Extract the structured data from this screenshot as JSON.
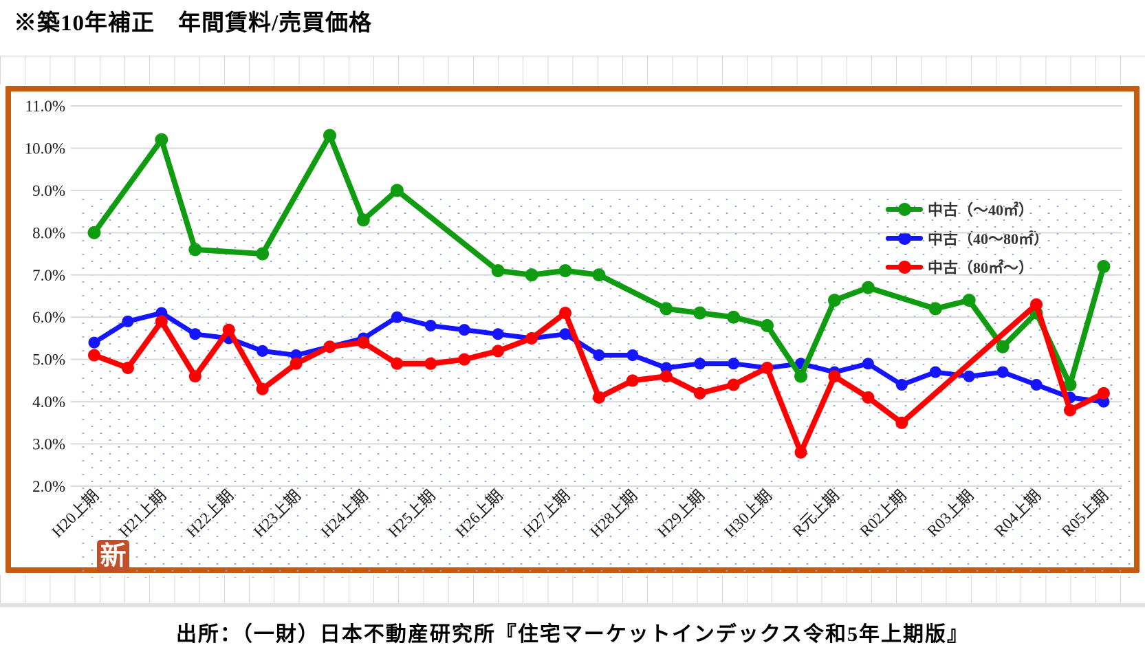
{
  "title": "※築10年補正　年間賃料/売買価格",
  "source": "出所：（一財）日本不動産研究所『住宅マーケットインデックス令和5年上期版』",
  "stamp": "新",
  "colors": {
    "frame": "#C55A11",
    "gridline": "#D9D9D9",
    "dot_pattern": "#8FA8DC",
    "stamp_bg": "#C0502B",
    "axis_text": "#1a1a1a"
  },
  "chart_data": {
    "type": "line",
    "title": "年間賃料/売買価格（築10年補正）",
    "categories": [
      "H20上期",
      "H21上期",
      "H22上期",
      "H23上期",
      "H24上期",
      "H25上期",
      "H26上期",
      "H27上期",
      "H28上期",
      "H29上期",
      "H30上期",
      "R元上期",
      "R02上期",
      "R03上期",
      "R04上期",
      "R05上期"
    ],
    "slots_per_label": 2,
    "x_note": "data points are half-yearly (上期/下期); axis labels shown for 上期 only; null = no marker (gap connected by line)",
    "y_ticks": [
      "11.0%",
      "10.0%",
      "9.0%",
      "8.0%",
      "7.0%",
      "6.0%",
      "5.0%",
      "4.0%",
      "3.0%",
      "2.0%"
    ],
    "ylim": [
      2.0,
      11.0
    ],
    "grid": true,
    "legend_position": "top-right",
    "series": [
      {
        "name": "中古（40～80㎡）",
        "color": "#1414FF",
        "line_width": 7,
        "marker_r": 8.5,
        "values": [
          5.4,
          5.9,
          6.1,
          5.6,
          5.5,
          5.2,
          5.1,
          5.3,
          5.5,
          6.0,
          5.8,
          5.7,
          5.6,
          5.5,
          5.6,
          5.1,
          5.1,
          4.8,
          4.9,
          4.9,
          4.8,
          4.9,
          4.7,
          4.9,
          4.4,
          4.7,
          4.6,
          4.7,
          4.4,
          4.1,
          4.0
        ]
      },
      {
        "name": "中古（～40㎡）",
        "color": "#109C10",
        "line_width": 8,
        "marker_r": 9.5,
        "values": [
          8.0,
          null,
          10.2,
          7.6,
          null,
          7.5,
          null,
          10.3,
          8.3,
          9.0,
          null,
          null,
          7.1,
          7.0,
          7.1,
          7.0,
          null,
          6.2,
          6.1,
          6.0,
          5.8,
          4.6,
          6.4,
          6.7,
          null,
          6.2,
          6.4,
          5.3,
          6.1,
          4.4,
          7.2
        ]
      },
      {
        "name": "中古（80㎡～）",
        "color": "#FF0000",
        "line_width": 8,
        "marker_r": 9,
        "values": [
          5.1,
          4.8,
          5.9,
          4.6,
          5.7,
          4.3,
          4.9,
          5.3,
          5.4,
          4.9,
          4.9,
          5.0,
          5.2,
          5.5,
          6.1,
          4.1,
          4.5,
          4.6,
          4.2,
          4.4,
          4.8,
          2.8,
          4.6,
          4.1,
          3.5,
          null,
          null,
          null,
          6.3,
          3.8,
          4.2
        ]
      }
    ],
    "legend_order": [
      1,
      0,
      2
    ]
  }
}
